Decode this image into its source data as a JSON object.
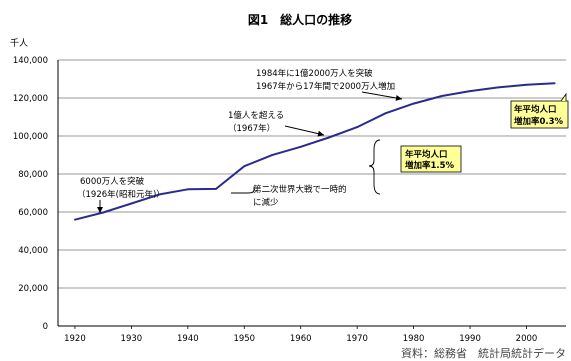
{
  "chart_data": {
    "type": "line",
    "title": "図1　総人口の推移",
    "unit_label": "千人",
    "ylim": [
      0,
      140000
    ],
    "yticks": [
      0,
      20000,
      40000,
      60000,
      80000,
      100000,
      120000,
      140000
    ],
    "ytick_labels": [
      "0",
      "20,000",
      "40,000",
      "60,000",
      "80,000",
      "100,000",
      "120,000",
      "140,000"
    ],
    "xlim": [
      1917,
      2007
    ],
    "xticks": [
      1920,
      1930,
      1940,
      1950,
      1960,
      1970,
      1980,
      1990,
      2000
    ],
    "xtick_labels": [
      "1920",
      "1930",
      "1940",
      "1950",
      "1960",
      "1970",
      "1980",
      "1990",
      "2000"
    ],
    "grid": "horizontal",
    "line_color": "#2b2b8f",
    "series": [
      {
        "x": [
          1920,
          1925,
          1930,
          1935,
          1940,
          1945,
          1950,
          1955,
          1960,
          1965,
          1970,
          1975,
          1980,
          1985,
          1990,
          1995,
          2000,
          2005
        ],
        "y": [
          55963,
          59737,
          64450,
          69254,
          71933,
          72147,
          84115,
          90077,
          94302,
          99209,
          104665,
          111940,
          117060,
          121049,
          123611,
          125570,
          126926,
          127768
        ]
      }
    ],
    "annotations": {
      "a1926_l1": "6000万人を突破",
      "a1926_l2": "（1926年(昭和元年)）",
      "a1967_l1": "1億人を超える",
      "a1967_l2": "（1967年）",
      "a1984_l1": "1984年に1億2000万人を突破",
      "a1984_l2": "1967年から17年間で2000万人増加",
      "war_l1": "第二次世界大戦で一時的",
      "war_l2": "に減少",
      "rate1_l1": "年平均人口",
      "rate1_l2": "増加率1.5%",
      "rate2_l1": "年平均人口",
      "rate2_l2": "増加率0.3%"
    },
    "source": "資料：総務省　統計局統計データ"
  }
}
